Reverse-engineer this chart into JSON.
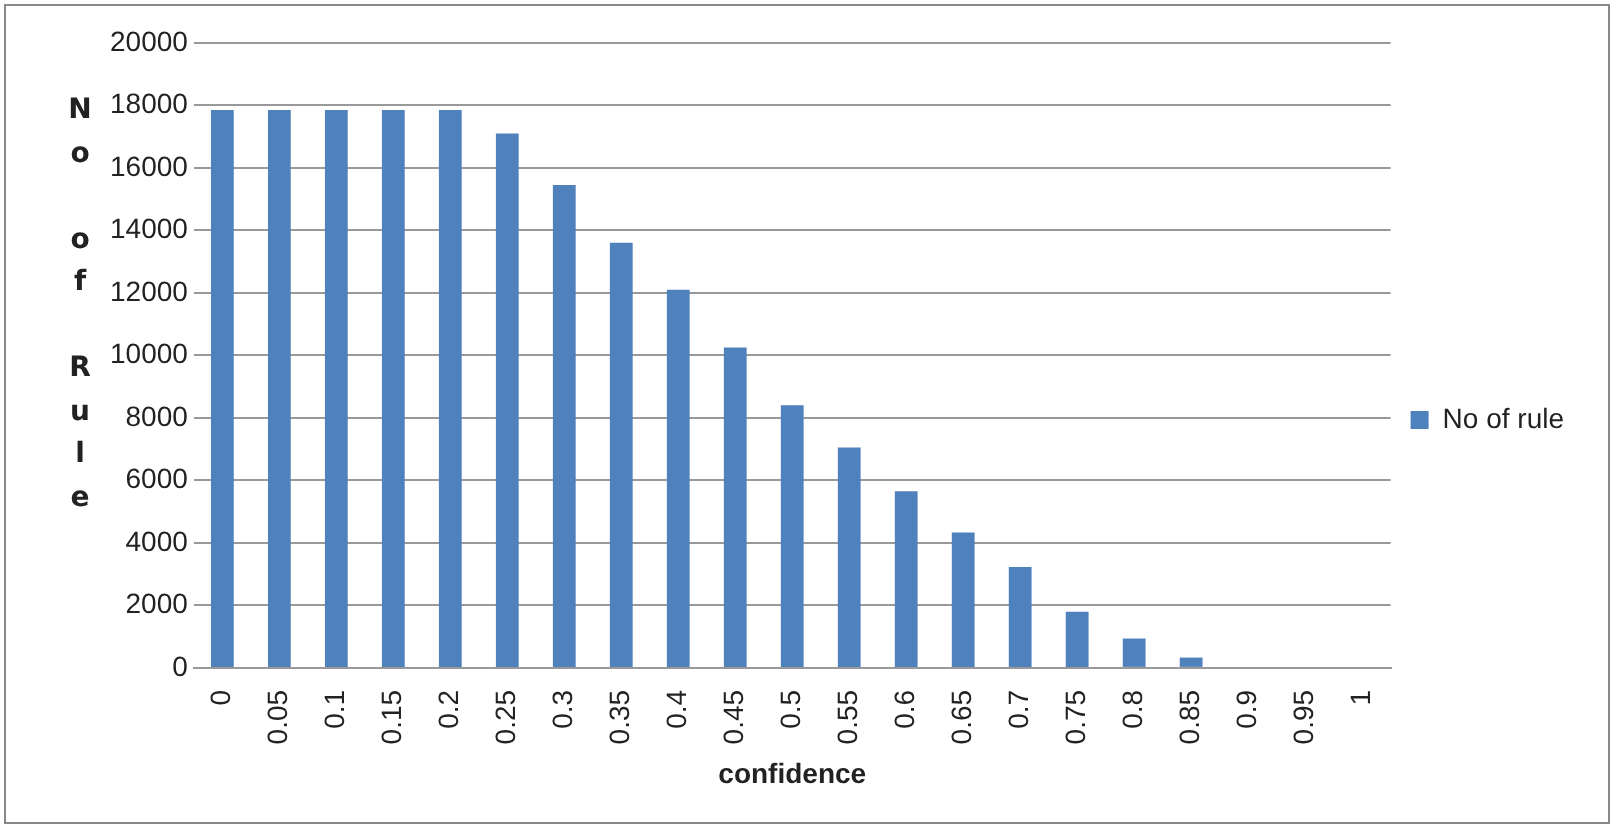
{
  "chart_data": {
    "type": "bar",
    "xlabel": "confidence",
    "ylabel": "No of Rule",
    "categories": [
      "0",
      "0.05",
      "0.1",
      "0.15",
      "0.2",
      "0.25",
      "0.3",
      "0.35",
      "0.4",
      "0.45",
      "0.5",
      "0.55",
      "0.6",
      "0.65",
      "0.7",
      "0.75",
      "0.8",
      "0.85",
      "0.9",
      "0.95",
      "1"
    ],
    "series": [
      {
        "name": "No of rule",
        "color": "#4f81bd",
        "values": [
          17850,
          17850,
          17850,
          17850,
          17850,
          17100,
          15450,
          13600,
          12100,
          10250,
          8400,
          7050,
          5650,
          4330,
          3230,
          1800,
          940,
          330,
          0,
          0,
          0
        ]
      }
    ],
    "ylim": [
      0,
      20000
    ],
    "yticks": [
      0,
      2000,
      4000,
      6000,
      8000,
      10000,
      12000,
      14000,
      16000,
      18000,
      20000
    ],
    "grid": "y",
    "legend": "right"
  }
}
